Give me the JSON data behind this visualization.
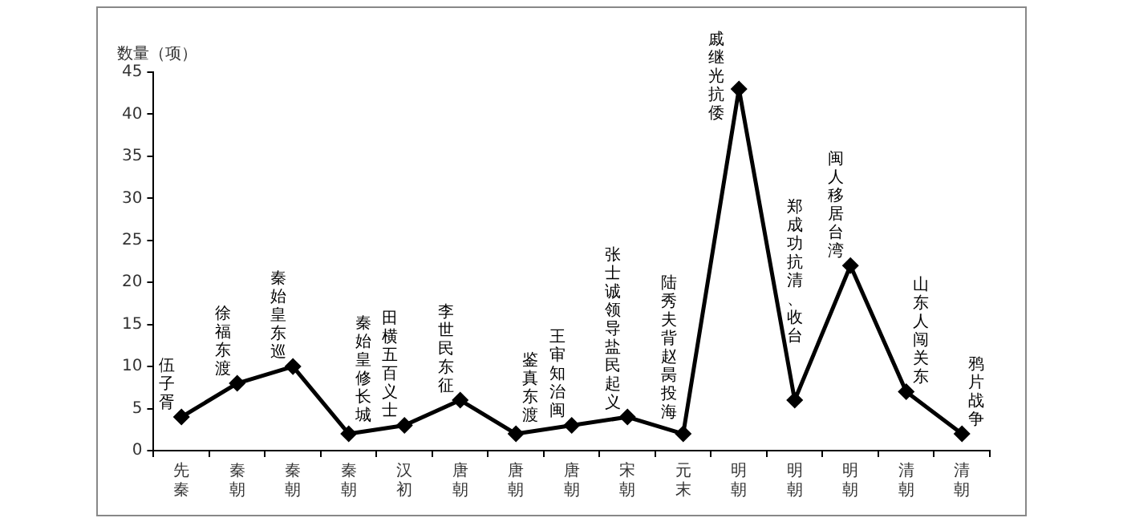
{
  "chart_data": {
    "type": "line",
    "ylabel": "数量（项）",
    "categories": [
      "先秦",
      "秦朝",
      "秦朝",
      "秦朝",
      "汉初",
      "唐朝",
      "唐朝",
      "唐朝",
      "宋朝",
      "元末",
      "明朝",
      "明朝",
      "明朝",
      "清朝",
      "清朝"
    ],
    "values": [
      4,
      8,
      10,
      2,
      3,
      6,
      2,
      3,
      4,
      2,
      43,
      6,
      22,
      7,
      2
    ],
    "value_labels": [
      "伍子胥",
      "徐福东渡",
      "秦始皇东巡",
      "秦始皇修长城",
      "田横五百义士",
      "李世民东征",
      "鉴真东渡",
      "王审知治闽",
      "张士诚领导盐民起义",
      "陆秀夫背赵昺投海",
      "戚继光抗倭",
      "郑成功抗清、收台",
      "闽人移居台湾",
      "山东人闯关东",
      "鸦片战争"
    ],
    "color": "#000000",
    "marker": "diamond",
    "line_style": "solid",
    "ylim": [
      0,
      45
    ],
    "yticks": [
      0,
      5,
      10,
      15,
      20,
      25,
      30,
      35,
      40,
      45
    ],
    "grid": false,
    "legend": false
  }
}
